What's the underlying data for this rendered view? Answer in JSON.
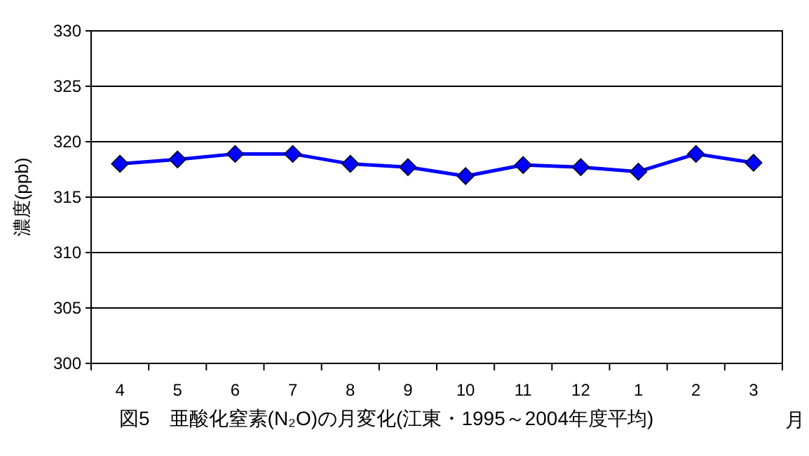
{
  "chart_data": {
    "type": "line",
    "title": "図5　亜酸化窒素(N₂O)の月変化(江東・1995～2004年度平均)",
    "xlabel": "月",
    "ylabel": "濃度(ppb)",
    "categories": [
      "4",
      "5",
      "6",
      "7",
      "8",
      "9",
      "10",
      "11",
      "12",
      "1",
      "2",
      "3"
    ],
    "series": [
      {
        "color": "#0000ff",
        "values": [
          318.0,
          318.4,
          318.9,
          318.9,
          318.0,
          317.7,
          316.9,
          317.9,
          317.7,
          317.3,
          318.9,
          318.1
        ]
      }
    ],
    "ylim": [
      300,
      330
    ],
    "yticks": [
      300,
      305,
      310,
      315,
      320,
      325,
      330
    ],
    "grid": "y",
    "marker": "diamond"
  }
}
